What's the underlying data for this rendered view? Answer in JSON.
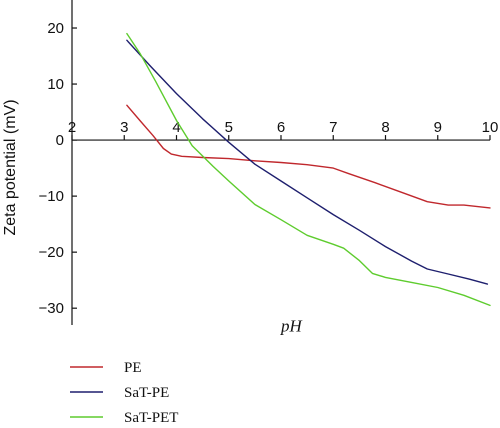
{
  "chart_data": {
    "type": "line",
    "title": "",
    "xlabel": "pH",
    "ylabel": "Zeta potential (mV)",
    "xlim": [
      2,
      10
    ],
    "ylim": [
      -33,
      25
    ],
    "xticks": [
      "2",
      "3",
      "4",
      "5",
      "6",
      "7",
      "8",
      "9",
      "10"
    ],
    "yticks": [
      "20",
      "10",
      "0",
      "−10",
      "−20",
      "−30"
    ],
    "x_axis_position": "y=0",
    "grid": false,
    "legend_position": "bottom-left",
    "series": [
      {
        "name": "PE",
        "color": "#c0282d",
        "points": [
          [
            3.05,
            6.2
          ],
          [
            3.3,
            3.5
          ],
          [
            3.55,
            0.8
          ],
          [
            3.75,
            -1.5
          ],
          [
            3.9,
            -2.5
          ],
          [
            4.1,
            -2.9
          ],
          [
            4.5,
            -3.1
          ],
          [
            5.0,
            -3.3
          ],
          [
            5.5,
            -3.7
          ],
          [
            6.0,
            -4.0
          ],
          [
            6.5,
            -4.4
          ],
          [
            7.0,
            -5.0
          ],
          [
            7.3,
            -6.0
          ],
          [
            7.8,
            -7.6
          ],
          [
            8.3,
            -9.3
          ],
          [
            8.8,
            -11.0
          ],
          [
            9.2,
            -11.6
          ],
          [
            9.5,
            -11.6
          ],
          [
            10.0,
            -12.1
          ]
        ]
      },
      {
        "name": "SaT-PE",
        "color": "#1e1f6e",
        "points": [
          [
            3.05,
            17.8
          ],
          [
            3.5,
            13.2
          ],
          [
            4.0,
            8.3
          ],
          [
            4.5,
            3.8
          ],
          [
            5.0,
            -0.4
          ],
          [
            5.5,
            -4.3
          ],
          [
            6.0,
            -7.3
          ],
          [
            6.5,
            -10.3
          ],
          [
            7.0,
            -13.3
          ],
          [
            7.5,
            -16.1
          ],
          [
            8.0,
            -19.0
          ],
          [
            8.5,
            -21.6
          ],
          [
            8.8,
            -23.0
          ],
          [
            9.2,
            -23.9
          ],
          [
            9.6,
            -24.8
          ],
          [
            9.95,
            -25.7
          ]
        ]
      },
      {
        "name": "SaT-PET",
        "color": "#5ecc2e",
        "points": [
          [
            3.05,
            19.0
          ],
          [
            3.3,
            15.5
          ],
          [
            3.6,
            10.5
          ],
          [
            4.0,
            3.5
          ],
          [
            4.3,
            -1.0
          ],
          [
            4.7,
            -4.7
          ],
          [
            5.0,
            -7.3
          ],
          [
            5.5,
            -11.5
          ],
          [
            6.0,
            -14.2
          ],
          [
            6.5,
            -17.0
          ],
          [
            7.0,
            -18.6
          ],
          [
            7.2,
            -19.3
          ],
          [
            7.5,
            -21.5
          ],
          [
            7.75,
            -23.8
          ],
          [
            8.0,
            -24.5
          ],
          [
            8.5,
            -25.4
          ],
          [
            9.0,
            -26.3
          ],
          [
            9.5,
            -27.7
          ],
          [
            10.0,
            -29.5
          ]
        ]
      }
    ]
  }
}
